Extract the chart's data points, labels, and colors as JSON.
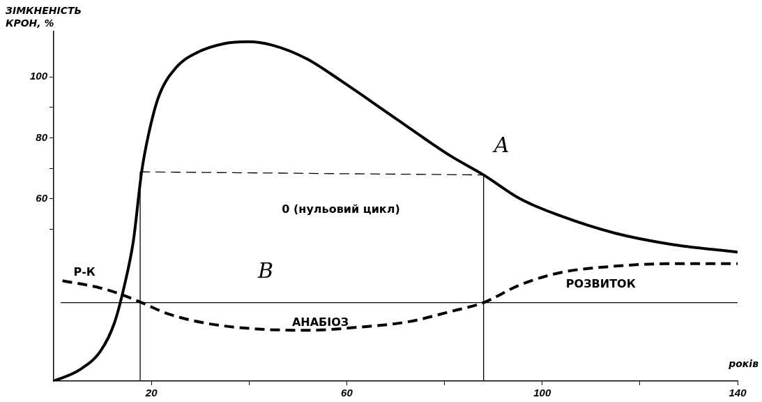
{
  "chart_data": {
    "type": "line",
    "ylabel": "ЗІМКНЕНІСТЬ КРОН, %",
    "xlabel": "років",
    "xlim": [
      0,
      140
    ],
    "xticks": [
      20,
      {
        "value": 40,
        "label": null
      },
      60,
      {
        "value": 80,
        "label": null
      },
      100,
      {
        "value": 120,
        "label": null
      },
      140
    ],
    "ylim": [
      0,
      115
    ],
    "yticks": [
      {
        "value": 50,
        "label": null
      },
      60,
      {
        "value": 70,
        "label": null
      },
      80,
      {
        "value": 90,
        "label": null
      },
      100
    ],
    "grid": false,
    "legend": false,
    "marker": "none",
    "series": [
      {
        "color": "#000000",
        "line_style": "solid",
        "x": [
          0,
          5.3,
          9.6,
          12.4,
          14.5,
          16.3,
          18,
          19.4,
          21.5,
          25,
          29.3,
          34.9,
          39.8,
          44.7,
          51.8,
          58.8,
          67.2,
          75.7,
          81.3,
          88,
          95.4,
          103.8,
          115,
          126.3,
          140
        ],
        "values": [
          0,
          3.7,
          9.9,
          19,
          31.6,
          46,
          68.8,
          81,
          93.6,
          103,
          108,
          111,
          111.6,
          110.5,
          106,
          98.8,
          89.5,
          80,
          74,
          67.8,
          60,
          54.3,
          48.6,
          45,
          42.4
        ]
      },
      {
        "color": "#000000",
        "line_style": "dashed",
        "x": [
          1.8,
          9.6,
          13.8,
          18,
          23.6,
          32,
          41.9,
          51.8,
          61.6,
          72.9,
          81.3,
          88,
          95.4,
          103.8,
          115,
          126.3,
          140
        ],
        "values": [
          33,
          30.6,
          28.5,
          25.8,
          22,
          18.8,
          17.1,
          16.7,
          17.6,
          19.6,
          22.9,
          25.8,
          31.6,
          35.7,
          37.8,
          38.6,
          38.6
        ]
      },
      {
        "color": "#000000",
        "line_style": "solid",
        "x": [
          17.7,
          17.7
        ],
        "values": [
          0,
          68.8
        ]
      },
      {
        "color": "#000000",
        "line_style": "solid",
        "x": [
          88,
          88
        ],
        "values": [
          0,
          67.8
        ]
      },
      {
        "color": "#000000",
        "line_style": "dashed",
        "x": [
          17.7,
          88
        ],
        "values": [
          68.8,
          67.8
        ]
      }
    ],
    "ref_lines": [
      {
        "axis": "y",
        "value": 25.8,
        "color": "#000000"
      }
    ],
    "annotations": [
      "A",
      "B",
      "0 (нульовий цикл)",
      "АНАБІОЗ",
      "Р-К",
      "РОЗВИТОК"
    ]
  }
}
